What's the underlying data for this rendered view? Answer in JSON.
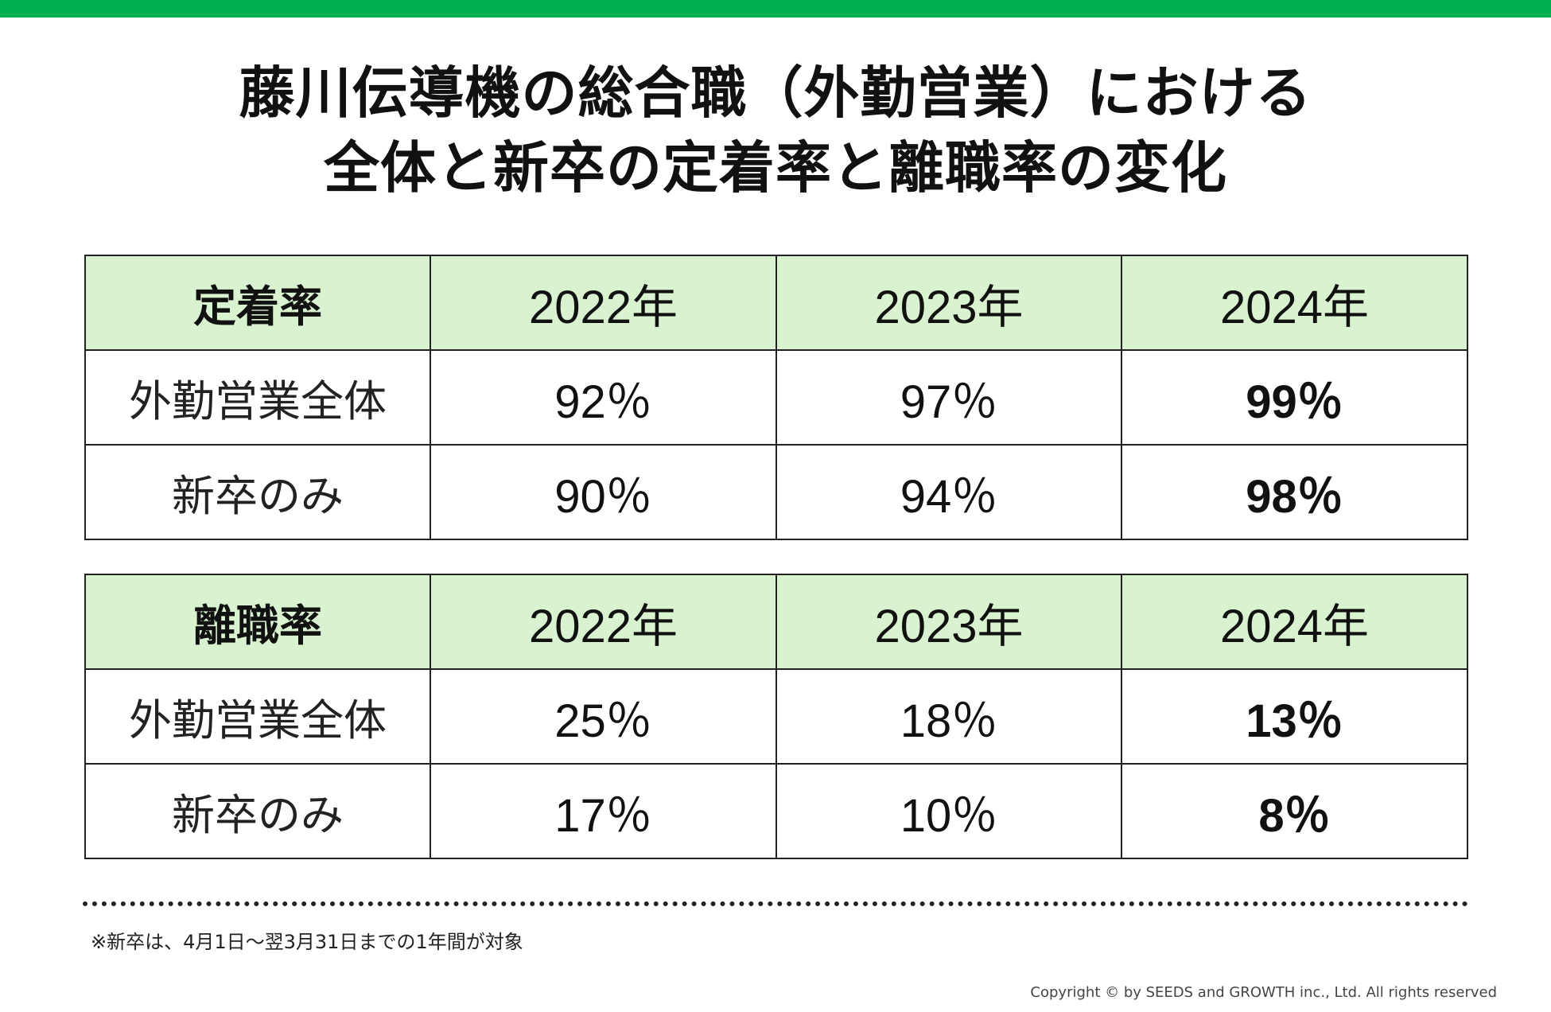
{
  "title": {
    "line1": "藤川伝導機の総合職（外勤営業）における",
    "line2": "全体と新卒の定着率と離職率の変化"
  },
  "retention_table": {
    "header": [
      "定着率",
      "2022年",
      "2023年",
      "2024年"
    ],
    "rows": [
      {
        "label": "外勤営業全体",
        "values": [
          "92％",
          "97％",
          "99％"
        ]
      },
      {
        "label": "新卒のみ",
        "values": [
          "90％",
          "94％",
          "98％"
        ]
      }
    ]
  },
  "turnover_table": {
    "header": [
      "離職率",
      "2022年",
      "2023年",
      "2024年"
    ],
    "rows": [
      {
        "label": "外勤営業全体",
        "values": [
          "25％",
          "18％",
          "13％"
        ]
      },
      {
        "label": "新卒のみ",
        "values": [
          "17％",
          "10％",
          "8％"
        ]
      }
    ]
  },
  "footnote": "※新卒は、4月1日～翌3月31日までの1年間が対象",
  "copyright": "Copyright © by SEEDS and GROWTH inc., Ltd. All rights reserved",
  "colors": {
    "accent_bar": "#00b050",
    "header_fill": "#d9f2d0"
  }
}
